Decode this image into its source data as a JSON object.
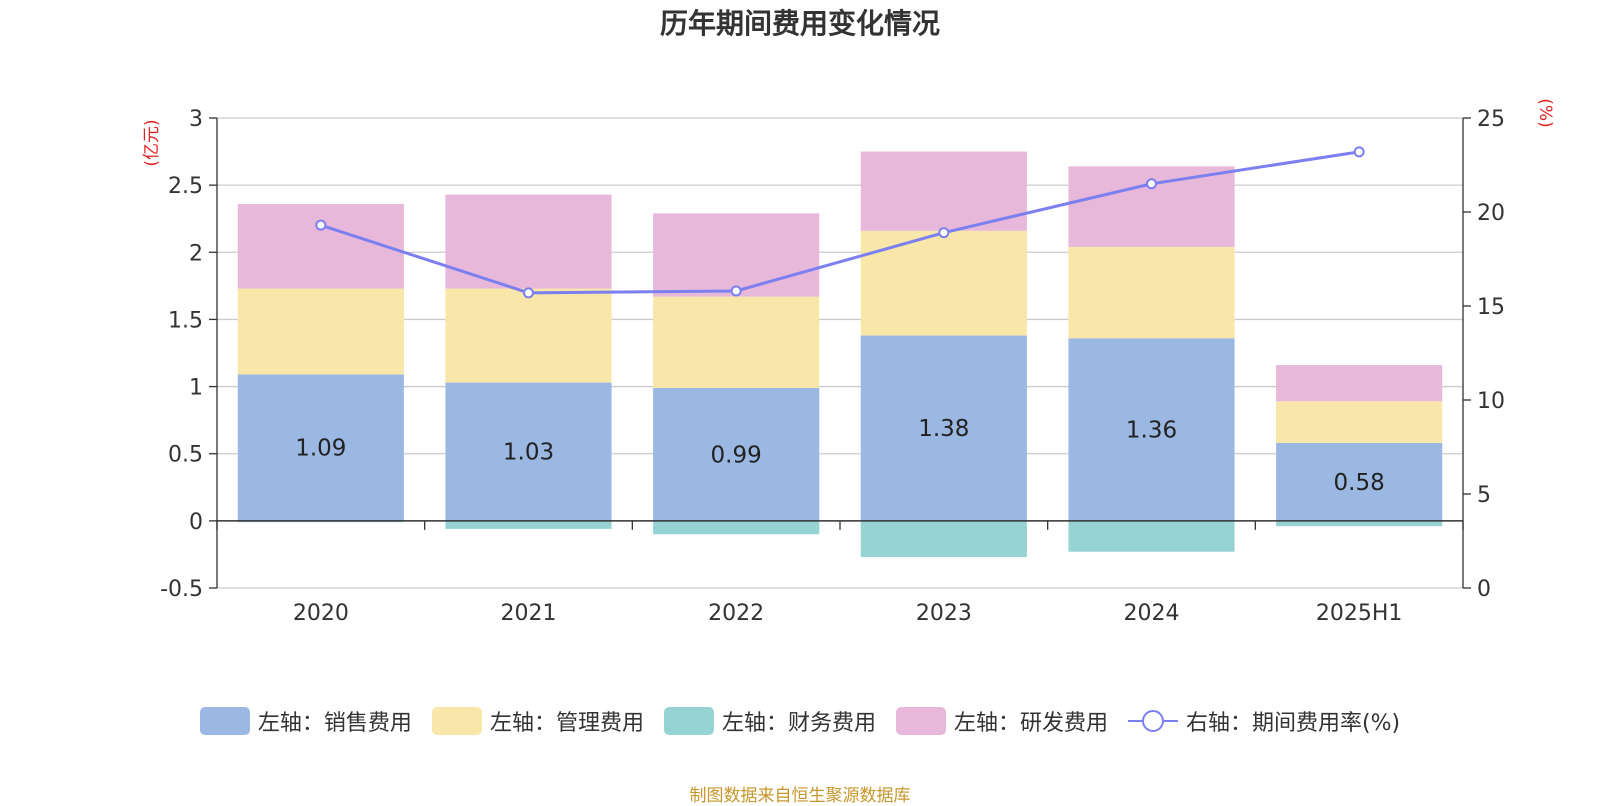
{
  "chart_data": {
    "type": "bar",
    "title": "历年期间费用变化情况",
    "categories": [
      "2020",
      "2021",
      "2022",
      "2023",
      "2024",
      "2025H1"
    ],
    "left_axis": {
      "unit": "(亿元)",
      "ylim": [
        -0.5,
        3
      ],
      "ticks": [
        "-0.5",
        "0",
        "0.5",
        "1",
        "1.5",
        "2",
        "2.5",
        "3"
      ]
    },
    "right_axis": {
      "unit": "(%)",
      "ylim": [
        0,
        25
      ],
      "ticks": [
        "0",
        "5",
        "10",
        "15",
        "20",
        "25"
      ]
    },
    "series": [
      {
        "name": "左轴：销售费用",
        "type": "bar",
        "color": "#9bb8e2",
        "values": [
          1.09,
          1.03,
          0.99,
          1.38,
          1.36,
          0.58
        ],
        "labels": [
          "1.09",
          "1.03",
          "0.99",
          "1.38",
          "1.36",
          "0.58"
        ]
      },
      {
        "name": "左轴：管理费用",
        "type": "bar",
        "color": "#f8e7a8",
        "values": [
          0.64,
          0.7,
          0.68,
          0.78,
          0.68,
          0.31
        ]
      },
      {
        "name": "左轴：财务费用",
        "type": "bar",
        "color": "#96d4d4",
        "values": [
          -0.01,
          -0.06,
          -0.1,
          -0.27,
          -0.23,
          -0.04
        ]
      },
      {
        "name": "左轴：研发费用",
        "type": "bar",
        "color": "#e7b8d9",
        "values": [
          0.63,
          0.7,
          0.62,
          0.59,
          0.6,
          0.27
        ]
      },
      {
        "name": "右轴：期间费用率(%)",
        "type": "line",
        "color": "#7b7ff0",
        "axis": "right",
        "values": [
          19.3,
          15.7,
          15.8,
          18.9,
          21.5,
          23.2
        ]
      }
    ],
    "grid": true,
    "legend_position": "bottom"
  },
  "source": "制图数据来自恒生聚源数据库"
}
